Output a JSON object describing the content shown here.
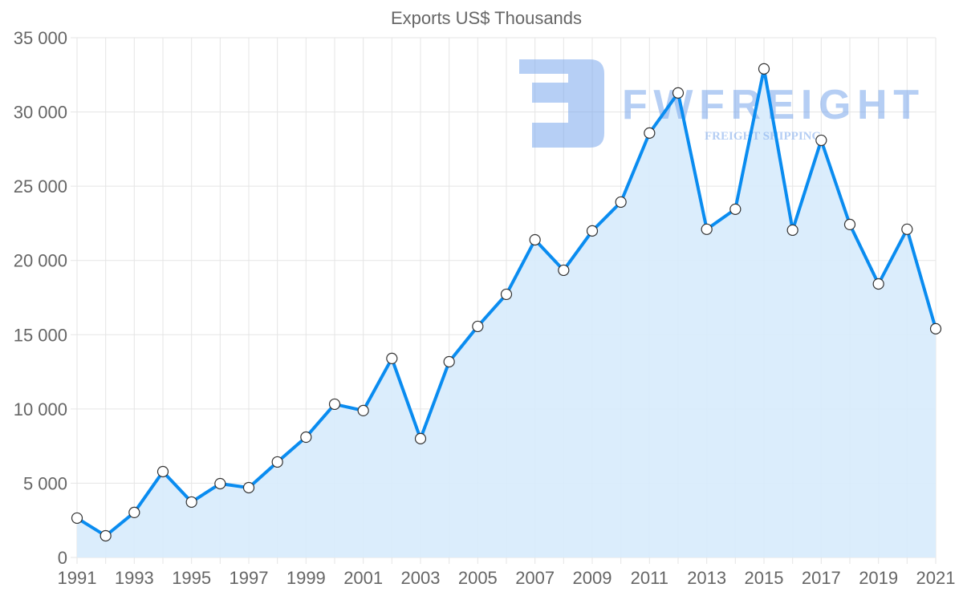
{
  "chart_data": {
    "type": "line",
    "title": "Exports US$ Thousands",
    "xlabel": "",
    "ylabel": "",
    "x": [
      1991,
      1992,
      1993,
      1994,
      1995,
      1996,
      1997,
      1998,
      1999,
      2000,
      2001,
      2002,
      2003,
      2004,
      2005,
      2006,
      2007,
      2008,
      2009,
      2010,
      2011,
      2012,
      2013,
      2014,
      2015,
      2016,
      2017,
      2018,
      2019,
      2020,
      2021
    ],
    "series": [
      {
        "name": "Exports US$ Thousands",
        "values": [
          2650,
          1460,
          3030,
          5780,
          3730,
          4970,
          4700,
          6430,
          8100,
          10320,
          9890,
          13400,
          8000,
          13180,
          15560,
          17720,
          21390,
          19340,
          21990,
          23930,
          28580,
          31280,
          22100,
          23450,
          32900,
          22040,
          28090,
          22420,
          18420,
          22100,
          15400
        ]
      }
    ],
    "xlim": [
      1991,
      2021
    ],
    "ylim": [
      0,
      35000
    ],
    "x_tick_labels": [
      "1991",
      "1993",
      "1995",
      "1997",
      "1999",
      "2001",
      "2003",
      "2005",
      "2007",
      "2009",
      "2011",
      "2013",
      "2015",
      "2017",
      "2019",
      "2021"
    ],
    "y_tick_labels": [
      "0",
      "5 000",
      "10 000",
      "15 000",
      "20 000",
      "25 000",
      "30 000",
      "35 000"
    ],
    "grid": true,
    "legend": "none",
    "colors": {
      "line": "#0a8cf0",
      "fill": "#d7ebfc",
      "grid": "#e5e5e5",
      "watermark": "#7aa7ec"
    }
  },
  "watermark": {
    "brand": "FWFREIGHT",
    "tagline": "FREIGHT SHIPPING"
  }
}
